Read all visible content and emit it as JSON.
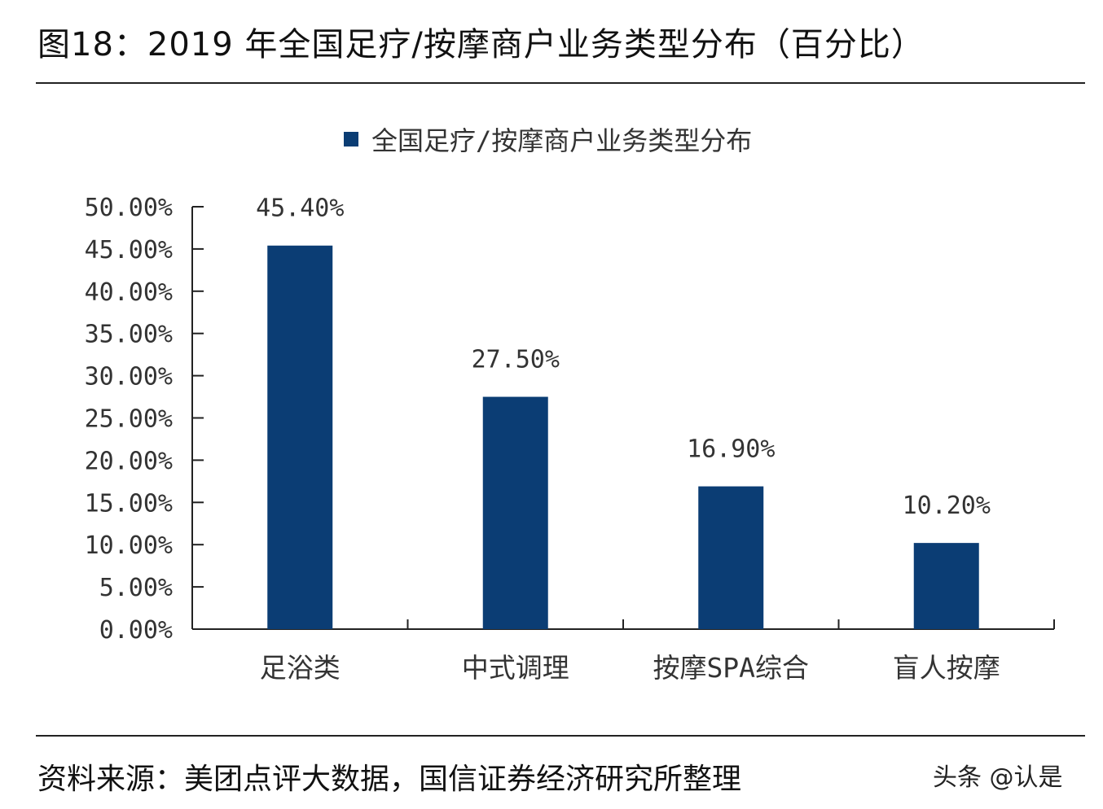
{
  "title": "图18：2019 年全国足疗/按摩商户业务类型分布（百分比）",
  "source": "资料来源：美团点评大数据，国信证券经济研究所整理",
  "watermark": "头条 @认是",
  "chart_data": {
    "type": "bar",
    "categories": [
      "足浴类",
      "中式调理",
      "按摩SPA综合",
      "盲人按摩"
    ],
    "series": [
      {
        "name": "全国足疗/按摩商户业务类型分布",
        "values": [
          45.4,
          27.5,
          16.9,
          10.2
        ],
        "color": "#0b3d74"
      }
    ],
    "data_labels": [
      "45.40%",
      "27.50%",
      "16.90%",
      "10.20%"
    ],
    "yticks": [
      "0.00%",
      "5.00%",
      "10.00%",
      "15.00%",
      "20.00%",
      "25.00%",
      "30.00%",
      "35.00%",
      "40.00%",
      "45.00%",
      "50.00%"
    ],
    "ylim": [
      0,
      50
    ],
    "legend_position": "top",
    "grid": false
  }
}
